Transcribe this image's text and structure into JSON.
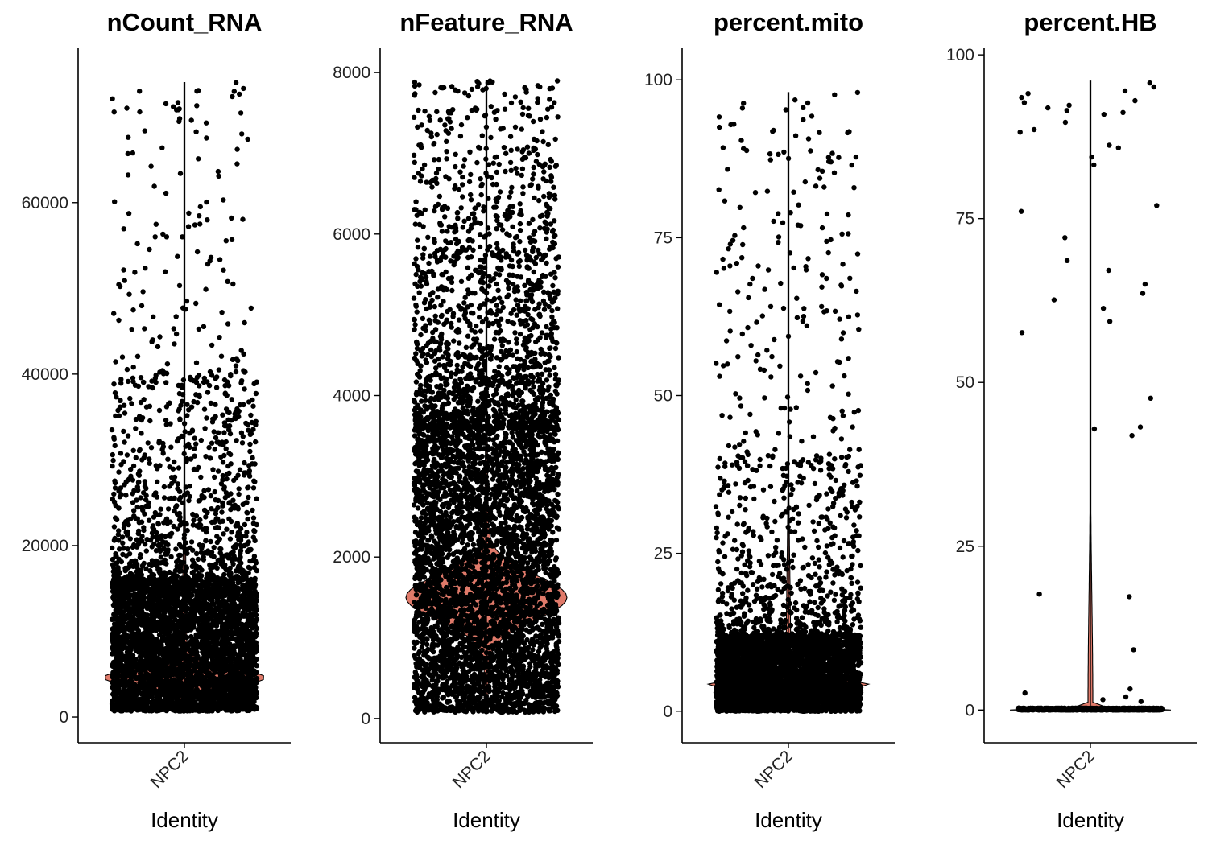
{
  "chart_data": [
    {
      "type": "violin",
      "title": "nCount_RNA",
      "xlabel": "Identity",
      "ylabel": "",
      "categories": [
        "NPC2"
      ],
      "ylim": [
        -3000,
        78000
      ],
      "yticks": [
        0,
        20000,
        40000,
        60000
      ],
      "ytick_labels": [
        "0",
        "20000",
        "40000",
        "60000"
      ],
      "violin_peak": 4600,
      "violin_max": 74000,
      "distribution": {
        "min": 700,
        "bulk_upper": 16000,
        "tail_upper": 40000,
        "max": 74000,
        "outliers": [
          69800,
          69600,
          58200,
          57500,
          55200,
          53200,
          50800,
          50500
        ]
      },
      "grid": false,
      "legend": "none",
      "color": "#e07a6a"
    },
    {
      "type": "violin",
      "title": "nFeature_RNA",
      "xlabel": "Identity",
      "ylabel": "",
      "categories": [
        "NPC2"
      ],
      "ylim": [
        -300,
        8300
      ],
      "yticks": [
        0,
        2000,
        4000,
        6000,
        8000
      ],
      "ytick_labels": [
        "0",
        "2000",
        "4000",
        "6000",
        "8000"
      ],
      "violin_peak": 1500,
      "violin_max": 7900,
      "distribution": {
        "min": 80,
        "bulk_upper": 3600,
        "tail_upper": 5800,
        "max": 7900,
        "outliers": [
          7880,
          7580,
          7350,
          7100,
          7050,
          7000,
          6900,
          6700,
          6600,
          6400
        ]
      },
      "grid": false,
      "legend": "none",
      "color": "#e07a6a"
    },
    {
      "type": "violin",
      "title": "percent.mito",
      "xlabel": "Identity",
      "ylabel": "",
      "categories": [
        "NPC2"
      ],
      "ylim": [
        -5,
        105
      ],
      "yticks": [
        0,
        25,
        50,
        75,
        100
      ],
      "ytick_labels": [
        "0",
        "25",
        "50",
        "75",
        "100"
      ],
      "violin_peak": 4.2,
      "violin_max": 98,
      "distribution": {
        "min": 0,
        "bulk_upper": 12,
        "tail_upper": 40,
        "max": 98,
        "outliers": [
          98,
          96.3,
          92.5,
          91.8,
          90.4,
          88.2,
          87.7,
          86.5
        ]
      },
      "grid": false,
      "legend": "none",
      "color": "#e07a6a"
    },
    {
      "type": "violin",
      "title": "percent.HB",
      "xlabel": "Identity",
      "ylabel": "",
      "categories": [
        "NPC2"
      ],
      "ylim": [
        -5,
        101
      ],
      "yticks": [
        0,
        25,
        50,
        75,
        100
      ],
      "ytick_labels": [
        "0",
        "25",
        "50",
        "75",
        "100"
      ],
      "violin_peak": 0,
      "violin_max": 96,
      "distribution": {
        "min": 0,
        "bulk_upper": 0.3,
        "tail_upper": 0.3,
        "max": 96,
        "outliers": [
          95.7,
          95.1,
          94.5,
          94.1,
          93.5,
          93.0,
          92.7,
          92.3,
          91.9,
          91.5,
          91.2,
          90.9,
          89.7,
          88.6,
          88.2,
          86.2,
          85.8,
          84.4,
          83.2,
          77.0,
          76.1,
          72.1,
          68.6,
          67.1,
          65.0,
          63.6,
          62.6,
          61.3,
          59.3,
          57.6,
          47.6,
          43.2,
          42.9,
          41.9,
          17.7,
          17.3,
          9.2,
          3.2,
          2.6,
          2.0,
          1.6,
          1.3
        ]
      },
      "grid": false,
      "legend": "none",
      "color": "#e07a6a"
    }
  ]
}
